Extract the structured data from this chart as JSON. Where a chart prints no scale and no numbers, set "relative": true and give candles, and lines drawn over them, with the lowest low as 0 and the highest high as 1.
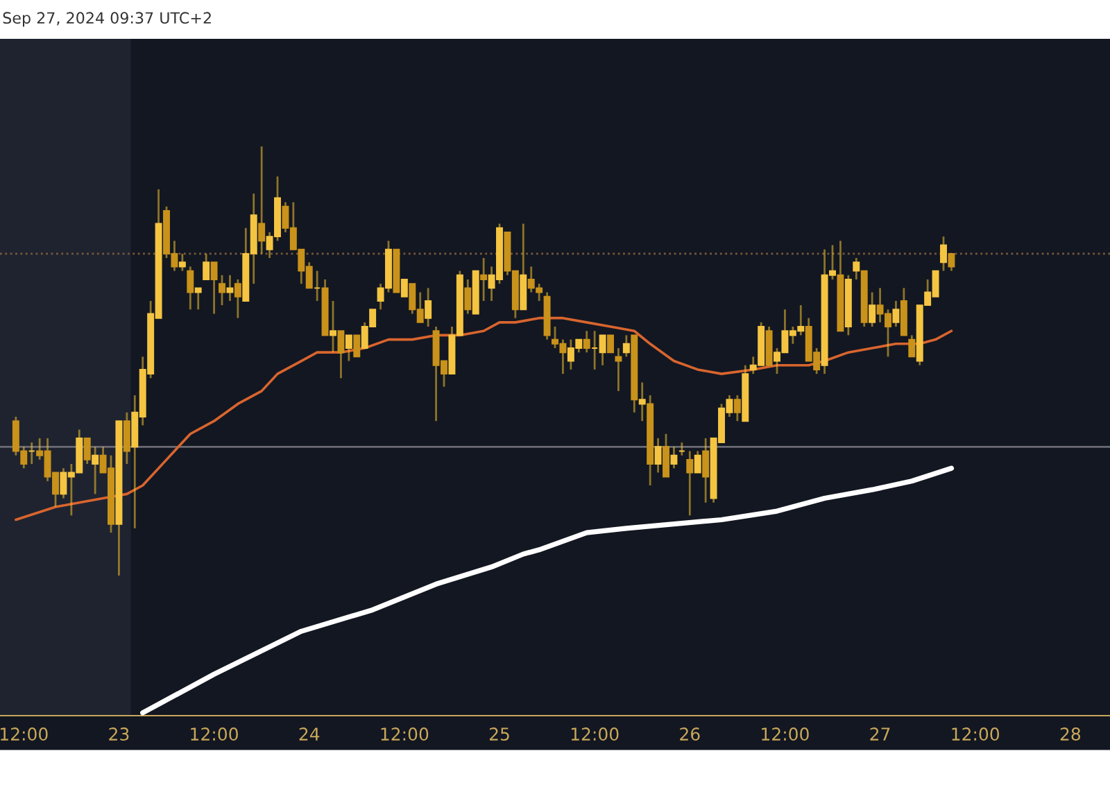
{
  "chart_data": {
    "type": "candlestick",
    "relative": true,
    "color": "#f2c230",
    "colors": [
      "#c9921a",
      "#c9921a",
      "#f5c542",
      "#c9921a",
      "#c9921a",
      "#c9921a",
      "#f5c542",
      "#f5c542",
      "#f5c542",
      "#c9921a",
      "#f5c542",
      "#c9921a",
      "#c9921a",
      "#f5c542",
      "#c9921a",
      "#f5c542",
      "#f5c542",
      "#f5c542",
      "#f5c542",
      "#c9921a",
      "#c9921a",
      "#f5c542",
      "#c9921a",
      "#f5c542",
      "#f5c542",
      "#c9921a",
      "#c9921a",
      "#f5c542",
      "#c9921a",
      "#f5c542",
      "#f5c542",
      "#c9921a",
      "#f5c542",
      "#f5c542",
      "#c9921a",
      "#c9921a",
      "#c9921a",
      "#c9921a",
      "#f5c542",
      "#c9921a",
      "#f5c542",
      "#c9921a",
      "#f5c542",
      "#c9921a",
      "#f5c542",
      "#f5c542",
      "#f5c542",
      "#f5c542",
      "#c9921a",
      "#f5c542",
      "#c9921a",
      "#c9921a",
      "#f5c542",
      "#c9921a",
      "#c9921a",
      "#f5c542",
      "#f5c542",
      "#c9921a",
      "#f5c542",
      "#c9921a",
      "#f5c542",
      "#f5c542",
      "#c9921a",
      "#c9921a",
      "#f5c542",
      "#c9921a",
      "#c9921a",
      "#c9921a",
      "#c9921a",
      "#c9921a",
      "#f5c542",
      "#f5c542",
      "#c9921a",
      "#f5c542",
      "#f5c542",
      "#c9921a",
      "#c9921a",
      "#f5c542",
      "#c9921a",
      "#f5c542",
      "#c9921a",
      "#f5c542",
      "#c9921a",
      "#f5c542",
      "#f5c542",
      "#c9921a",
      "#f5c542",
      "#c9921a",
      "#f5c542",
      "#f5c542",
      "#f5c542",
      "#c9921a",
      "#f5c542",
      "#f5c542",
      "#f5c542",
      "#c9921a",
      "#f5c542",
      "#f5c542",
      "#f5c542",
      "#f5c542",
      "#c9921a",
      "#c9921a",
      "#f5c542",
      "#f5c542",
      "#c9921a",
      "#f5c542",
      "#f5c542",
      "#c9921a",
      "#f5c542",
      "#c9921a",
      "#c9921a",
      "#f5c542",
      "#c9921a",
      "#c9921a",
      "#f5c542",
      "#f5c542",
      "#f5c542",
      "#f5c542",
      "#c9921a"
    ],
    "annotations": [
      "Sep 27, 2024 09:37 UTC+2"
    ],
    "x": [
      "2024-09-22T11:00",
      "2024-09-22T12:00",
      "2024-09-22T13:00",
      "2024-09-22T14:00",
      "2024-09-22T15:00",
      "2024-09-22T16:00",
      "2024-09-22T17:00",
      "2024-09-22T18:00",
      "2024-09-22T19:00",
      "2024-09-22T20:00",
      "2024-09-22T21:00",
      "2024-09-22T22:00",
      "2024-09-22T23:00",
      "2024-09-23T00:00",
      "2024-09-23T01:00",
      "2024-09-23T02:00",
      "2024-09-23T03:00",
      "2024-09-23T04:00",
      "2024-09-23T05:00",
      "2024-09-23T06:00",
      "2024-09-23T07:00",
      "2024-09-23T08:00",
      "2024-09-23T09:00",
      "2024-09-23T10:00",
      "2024-09-23T11:00",
      "2024-09-23T12:00",
      "2024-09-23T13:00",
      "2024-09-23T14:00",
      "2024-09-23T15:00",
      "2024-09-23T16:00",
      "2024-09-23T17:00",
      "2024-09-23T18:00",
      "2024-09-23T19:00",
      "2024-09-23T20:00",
      "2024-09-23T21:00",
      "2024-09-23T22:00",
      "2024-09-23T23:00",
      "2024-09-24T00:00",
      "2024-09-24T01:00",
      "2024-09-24T02:00",
      "2024-09-24T03:00",
      "2024-09-24T04:00",
      "2024-09-24T05:00",
      "2024-09-24T06:00",
      "2024-09-24T07:00",
      "2024-09-24T08:00",
      "2024-09-24T09:00",
      "2024-09-24T10:00",
      "2024-09-24T11:00",
      "2024-09-24T12:00",
      "2024-09-24T13:00",
      "2024-09-24T14:00",
      "2024-09-24T15:00",
      "2024-09-24T16:00",
      "2024-09-24T17:00",
      "2024-09-24T18:00",
      "2024-09-24T19:00",
      "2024-09-24T20:00",
      "2024-09-24T21:00",
      "2024-09-24T22:00",
      "2024-09-24T23:00",
      "2024-09-25T00:00",
      "2024-09-25T01:00",
      "2024-09-25T02:00",
      "2024-09-25T03:00",
      "2024-09-25T04:00",
      "2024-09-25T05:00",
      "2024-09-25T06:00",
      "2024-09-25T07:00",
      "2024-09-25T08:00",
      "2024-09-25T09:00",
      "2024-09-25T10:00",
      "2024-09-25T11:00",
      "2024-09-25T12:00",
      "2024-09-25T13:00",
      "2024-09-25T14:00",
      "2024-09-25T15:00",
      "2024-09-25T16:00",
      "2024-09-25T17:00",
      "2024-09-25T18:00",
      "2024-09-25T19:00",
      "2024-09-25T20:00",
      "2024-09-25T21:00",
      "2024-09-25T22:00",
      "2024-09-25T23:00",
      "2024-09-26T00:00",
      "2024-09-26T01:00",
      "2024-09-26T02:00",
      "2024-09-26T03:00",
      "2024-09-26T04:00",
      "2024-09-26T05:00",
      "2024-09-26T06:00",
      "2024-09-26T07:00",
      "2024-09-26T08:00",
      "2024-09-26T09:00",
      "2024-09-26T10:00",
      "2024-09-26T11:00",
      "2024-09-26T12:00",
      "2024-09-26T13:00",
      "2024-09-26T14:00",
      "2024-09-26T15:00",
      "2024-09-26T16:00",
      "2024-09-26T17:00",
      "2024-09-26T18:00",
      "2024-09-26T19:00",
      "2024-09-26T20:00",
      "2024-09-26T21:00",
      "2024-09-26T22:00",
      "2024-09-26T23:00",
      "2024-09-27T00:00",
      "2024-09-27T01:00",
      "2024-09-27T02:00",
      "2024-09-27T03:00",
      "2024-09-27T04:00",
      "2024-09-27T05:00",
      "2024-09-27T06:00",
      "2024-09-27T07:00",
      "2024-09-27T08:00",
      "2024-09-27T09:00"
    ],
    "ohlc": [
      [
        0.36,
        0.37,
        0.28,
        0.29
      ],
      [
        0.29,
        0.3,
        0.25,
        0.26
      ],
      [
        0.29,
        0.31,
        0.26,
        0.29
      ],
      [
        0.29,
        0.32,
        0.27,
        0.28
      ],
      [
        0.29,
        0.32,
        0.22,
        0.23
      ],
      [
        0.24,
        0.24,
        0.16,
        0.19
      ],
      [
        0.19,
        0.25,
        0.18,
        0.24
      ],
      [
        0.23,
        0.26,
        0.14,
        0.24
      ],
      [
        0.24,
        0.34,
        0.24,
        0.32
      ],
      [
        0.32,
        0.32,
        0.26,
        0.27
      ],
      [
        0.26,
        0.3,
        0.19,
        0.28
      ],
      [
        0.28,
        0.3,
        0.24,
        0.24
      ],
      [
        0.25,
        0.28,
        0.1,
        0.12
      ],
      [
        0.12,
        0.36,
        0.0,
        0.36
      ],
      [
        0.36,
        0.38,
        0.26,
        0.29
      ],
      [
        0.3,
        0.42,
        0.11,
        0.38
      ],
      [
        0.37,
        0.51,
        0.35,
        0.48
      ],
      [
        0.47,
        0.64,
        0.46,
        0.61
      ],
      [
        0.6,
        0.9,
        0.6,
        0.82
      ],
      [
        0.85,
        0.86,
        0.74,
        0.75
      ],
      [
        0.75,
        0.78,
        0.71,
        0.72
      ],
      [
        0.72,
        0.75,
        0.71,
        0.73
      ],
      [
        0.71,
        0.72,
        0.62,
        0.66
      ],
      [
        0.66,
        0.67,
        0.62,
        0.67
      ],
      [
        0.69,
        0.75,
        0.69,
        0.73
      ],
      [
        0.73,
        0.73,
        0.61,
        0.69
      ],
      [
        0.68,
        0.7,
        0.63,
        0.66
      ],
      [
        0.66,
        0.7,
        0.64,
        0.67
      ],
      [
        0.68,
        0.69,
        0.6,
        0.65
      ],
      [
        0.64,
        0.81,
        0.64,
        0.75
      ],
      [
        0.75,
        0.89,
        0.68,
        0.84
      ],
      [
        0.82,
        1.0,
        0.75,
        0.78
      ],
      [
        0.76,
        0.8,
        0.74,
        0.79
      ],
      [
        0.79,
        0.93,
        0.78,
        0.88
      ],
      [
        0.86,
        0.87,
        0.8,
        0.81
      ],
      [
        0.81,
        0.87,
        0.76,
        0.76
      ],
      [
        0.76,
        0.76,
        0.68,
        0.71
      ],
      [
        0.72,
        0.73,
        0.67,
        0.67
      ],
      [
        0.67,
        0.71,
        0.64,
        0.67
      ],
      [
        0.67,
        0.69,
        0.56,
        0.56
      ],
      [
        0.56,
        0.64,
        0.52,
        0.57
      ],
      [
        0.57,
        0.57,
        0.46,
        0.52
      ],
      [
        0.53,
        0.56,
        0.5,
        0.56
      ],
      [
        0.56,
        0.56,
        0.51,
        0.51
      ],
      [
        0.53,
        0.59,
        0.53,
        0.58
      ],
      [
        0.58,
        0.62,
        0.58,
        0.62
      ],
      [
        0.64,
        0.68,
        0.62,
        0.67
      ],
      [
        0.67,
        0.78,
        0.66,
        0.76
      ],
      [
        0.76,
        0.76,
        0.66,
        0.66
      ],
      [
        0.65,
        0.69,
        0.65,
        0.69
      ],
      [
        0.68,
        0.68,
        0.61,
        0.62
      ],
      [
        0.62,
        0.66,
        0.59,
        0.59
      ],
      [
        0.6,
        0.67,
        0.58,
        0.64
      ],
      [
        0.57,
        0.58,
        0.36,
        0.49
      ],
      [
        0.5,
        0.5,
        0.44,
        0.47
      ],
      [
        0.47,
        0.58,
        0.47,
        0.56
      ],
      [
        0.56,
        0.71,
        0.56,
        0.7
      ],
      [
        0.67,
        0.69,
        0.61,
        0.62
      ],
      [
        0.61,
        0.71,
        0.61,
        0.71
      ],
      [
        0.7,
        0.74,
        0.64,
        0.69
      ],
      [
        0.67,
        0.72,
        0.64,
        0.7
      ],
      [
        0.69,
        0.82,
        0.68,
        0.81
      ],
      [
        0.8,
        0.8,
        0.7,
        0.71
      ],
      [
        0.71,
        0.71,
        0.6,
        0.62
      ],
      [
        0.62,
        0.82,
        0.62,
        0.7
      ],
      [
        0.69,
        0.72,
        0.66,
        0.67
      ],
      [
        0.67,
        0.68,
        0.64,
        0.66
      ],
      [
        0.65,
        0.66,
        0.55,
        0.56
      ],
      [
        0.55,
        0.58,
        0.53,
        0.54
      ],
      [
        0.54,
        0.55,
        0.47,
        0.52
      ],
      [
        0.5,
        0.55,
        0.48,
        0.53
      ],
      [
        0.53,
        0.55,
        0.52,
        0.55
      ],
      [
        0.55,
        0.57,
        0.52,
        0.53
      ],
      [
        0.53,
        0.57,
        0.48,
        0.53
      ],
      [
        0.52,
        0.56,
        0.49,
        0.56
      ],
      [
        0.56,
        0.56,
        0.52,
        0.52
      ],
      [
        0.51,
        0.53,
        0.43,
        0.5
      ],
      [
        0.52,
        0.56,
        0.51,
        0.54
      ],
      [
        0.56,
        0.56,
        0.38,
        0.41
      ],
      [
        0.4,
        0.45,
        0.36,
        0.41
      ],
      [
        0.4,
        0.42,
        0.21,
        0.26
      ],
      [
        0.26,
        0.32,
        0.24,
        0.3
      ],
      [
        0.3,
        0.33,
        0.23,
        0.23
      ],
      [
        0.26,
        0.3,
        0.25,
        0.28
      ],
      [
        0.29,
        0.31,
        0.28,
        0.29
      ],
      [
        0.27,
        0.29,
        0.14,
        0.24
      ],
      [
        0.24,
        0.29,
        0.24,
        0.28
      ],
      [
        0.29,
        0.32,
        0.17,
        0.23
      ],
      [
        0.18,
        0.32,
        0.17,
        0.32
      ],
      [
        0.31,
        0.4,
        0.31,
        0.39
      ],
      [
        0.38,
        0.42,
        0.37,
        0.41
      ],
      [
        0.41,
        0.42,
        0.36,
        0.38
      ],
      [
        0.36,
        0.49,
        0.36,
        0.47
      ],
      [
        0.48,
        0.51,
        0.47,
        0.49
      ],
      [
        0.49,
        0.59,
        0.49,
        0.58
      ],
      [
        0.57,
        0.58,
        0.49,
        0.49
      ],
      [
        0.5,
        0.53,
        0.47,
        0.52
      ],
      [
        0.52,
        0.62,
        0.52,
        0.57
      ],
      [
        0.56,
        0.58,
        0.54,
        0.57
      ],
      [
        0.57,
        0.63,
        0.56,
        0.58
      ],
      [
        0.58,
        0.6,
        0.5,
        0.5
      ],
      [
        0.52,
        0.53,
        0.47,
        0.48
      ],
      [
        0.49,
        0.76,
        0.47,
        0.7
      ],
      [
        0.7,
        0.77,
        0.69,
        0.71
      ],
      [
        0.7,
        0.78,
        0.57,
        0.57
      ],
      [
        0.58,
        0.7,
        0.56,
        0.69
      ],
      [
        0.71,
        0.74,
        0.69,
        0.73
      ],
      [
        0.71,
        0.71,
        0.58,
        0.59
      ],
      [
        0.59,
        0.66,
        0.58,
        0.63
      ],
      [
        0.63,
        0.67,
        0.59,
        0.61
      ],
      [
        0.61,
        0.62,
        0.51,
        0.58
      ],
      [
        0.59,
        0.64,
        0.58,
        0.62
      ],
      [
        0.64,
        0.67,
        0.56,
        0.56
      ],
      [
        0.55,
        0.56,
        0.51,
        0.51
      ],
      [
        0.5,
        0.63,
        0.49,
        0.63
      ],
      [
        0.63,
        0.69,
        0.63,
        0.66
      ],
      [
        0.65,
        0.71,
        0.65,
        0.71
      ],
      [
        0.73,
        0.79,
        0.71,
        0.77
      ],
      [
        0.75,
        0.75,
        0.71,
        0.72
      ]
    ],
    "series": [
      {
        "type": "line",
        "color": "#d9652e",
        "x": [
          "2024-09-22T11:00",
          "2024-09-22T16:00",
          "2024-09-22T22:00",
          "2024-09-23T01:00",
          "2024-09-23T03:00",
          "2024-09-23T06:00",
          "2024-09-23T09:00",
          "2024-09-23T12:00",
          "2024-09-23T15:00",
          "2024-09-23T18:00",
          "2024-09-23T20:00",
          "2024-09-23T23:00",
          "2024-09-24T01:00",
          "2024-09-24T04:00",
          "2024-09-24T07:00",
          "2024-09-24T10:00",
          "2024-09-24T13:00",
          "2024-09-24T16:00",
          "2024-09-24T19:00",
          "2024-09-24T22:00",
          "2024-09-25T00:00",
          "2024-09-25T02:00",
          "2024-09-25T05:00",
          "2024-09-25T08:00",
          "2024-09-25T11:00",
          "2024-09-25T14:00",
          "2024-09-25T17:00",
          "2024-09-25T19:00",
          "2024-09-25T22:00",
          "2024-09-26T01:00",
          "2024-09-26T04:00",
          "2024-09-26T08:00",
          "2024-09-26T11:00",
          "2024-09-26T15:00",
          "2024-09-26T17:00",
          "2024-09-26T20:00",
          "2024-09-26T23:00",
          "2024-09-27T02:00",
          "2024-09-27T05:00",
          "2024-09-27T07:00",
          "2024-09-27T09:00"
        ],
        "values": [
          0.13,
          0.16,
          0.18,
          0.19,
          0.21,
          0.27,
          0.33,
          0.36,
          0.4,
          0.43,
          0.47,
          0.5,
          0.52,
          0.52,
          0.53,
          0.55,
          0.55,
          0.56,
          0.56,
          0.57,
          0.59,
          0.59,
          0.6,
          0.6,
          0.59,
          0.58,
          0.57,
          0.54,
          0.5,
          0.48,
          0.47,
          0.48,
          0.49,
          0.49,
          0.5,
          0.52,
          0.53,
          0.54,
          0.54,
          0.55,
          0.57
        ]
      },
      {
        "type": "line",
        "color": "#ffffff",
        "x": [
          "2024-09-23T03:00",
          "2024-09-23T12:00",
          "2024-09-23T23:00",
          "2024-09-24T08:00",
          "2024-09-24T16:00",
          "2024-09-24T23:00",
          "2024-09-25T03:00",
          "2024-09-25T05:00",
          "2024-09-25T11:00",
          "2024-09-25T16:00",
          "2024-09-25T22:00",
          "2024-09-26T04:00",
          "2024-09-26T11:00",
          "2024-09-26T17:00",
          "2024-09-26T23:00",
          "2024-09-27T04:00",
          "2024-09-27T09:00"
        ],
        "values": [
          -0.32,
          -0.23,
          -0.13,
          -0.08,
          -0.02,
          0.02,
          0.05,
          0.06,
          0.1,
          0.11,
          0.12,
          0.13,
          0.15,
          0.18,
          0.2,
          0.22,
          0.25
        ]
      }
    ],
    "ref_lines": [
      {
        "axis": "y",
        "value": 0.75,
        "color": "#7a5a3a",
        "line_style": "dotted"
      },
      {
        "axis": "y",
        "value": 0.3,
        "color": "#6b6b73",
        "line_style": "solid"
      }
    ],
    "bands": [
      {
        "axis": "x",
        "from": "2024-09-22T09:00",
        "to": "2024-09-23T01:30",
        "color": "#1f2330"
      }
    ],
    "xlim": [
      "2024-09-22T09:00",
      "2024-09-28T05:00"
    ],
    "xticks": [
      {
        "value": "2024-09-22T12:00",
        "label": "12:00"
      },
      {
        "value": "2024-09-23",
        "label": "23"
      },
      {
        "value": "2024-09-23T12:00",
        "label": "12:00"
      },
      {
        "value": "2024-09-24",
        "label": "24"
      },
      {
        "value": "2024-09-24T12:00",
        "label": "12:00"
      },
      {
        "value": "2024-09-25",
        "label": "25"
      },
      {
        "value": "2024-09-25T12:00",
        "label": "12:00"
      },
      {
        "value": "2024-09-26",
        "label": "26"
      },
      {
        "value": "2024-09-26T12:00",
        "label": "12:00"
      },
      {
        "value": "2024-09-27",
        "label": "27"
      },
      {
        "value": "2024-09-27T12:00",
        "label": "12:00"
      },
      {
        "value": "2024-09-28",
        "label": "28"
      }
    ]
  }
}
